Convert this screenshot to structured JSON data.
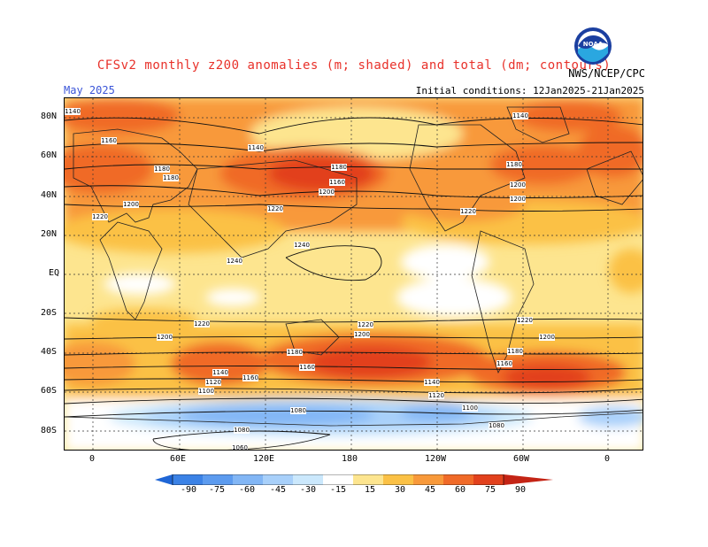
{
  "title": "CFSv2 monthly z200 anomalies (m; shaded) and total (dm; contours)",
  "agency": "NWS/NCEP/CPC",
  "month_label": "May 2025",
  "init_conditions": "Initial conditions: 12Jan2025-21Jan2025",
  "logo_text": "NOAA",
  "lat_labels": [
    "80N",
    "60N",
    "40N",
    "20N",
    "EQ",
    "20S",
    "40S",
    "60S",
    "80S"
  ],
  "lon_labels": [
    "0",
    "60E",
    "120E",
    "180",
    "120W",
    "60W",
    "0"
  ],
  "colorbar": {
    "labels": [
      "-90",
      "-75",
      "-60",
      "-45",
      "-30",
      "-15",
      "15",
      "30",
      "45",
      "60",
      "75",
      "90"
    ],
    "colors": [
      "#1f66d6",
      "#3b82e6",
      "#5c9bef",
      "#82b6f5",
      "#a8d0fa",
      "#cbe8fc",
      "#ffffff",
      "#fde58f",
      "#fbc145",
      "#f8993a",
      "#f06a28",
      "#e2411d",
      "#c42415"
    ]
  },
  "contour_labels": [
    {
      "text": "1140"
    },
    {
      "text": "1160"
    },
    {
      "text": "1180"
    },
    {
      "text": "1200"
    },
    {
      "text": "1220"
    },
    {
      "text": "1140"
    },
    {
      "text": "1180"
    },
    {
      "text": "1160"
    },
    {
      "text": "1200"
    },
    {
      "text": "1220"
    },
    {
      "text": "1240"
    },
    {
      "text": "1240"
    },
    {
      "text": "1220"
    },
    {
      "text": "1200"
    },
    {
      "text": "1140"
    },
    {
      "text": "1180"
    },
    {
      "text": "1200"
    },
    {
      "text": "1220"
    },
    {
      "text": "1220"
    },
    {
      "text": "1200"
    },
    {
      "text": "1180"
    },
    {
      "text": "1160"
    },
    {
      "text": "1140"
    },
    {
      "text": "1120"
    },
    {
      "text": "1100"
    },
    {
      "text": "1080"
    },
    {
      "text": "1080"
    },
    {
      "text": "1060"
    },
    {
      "text": "1140"
    },
    {
      "text": "1120"
    },
    {
      "text": "1100"
    },
    {
      "text": "1080"
    },
    {
      "text": "1160"
    },
    {
      "text": "1180"
    },
    {
      "text": "1200"
    },
    {
      "text": "1220"
    },
    {
      "text": "1200"
    },
    {
      "text": "1180"
    },
    {
      "text": "1160"
    }
  ]
}
